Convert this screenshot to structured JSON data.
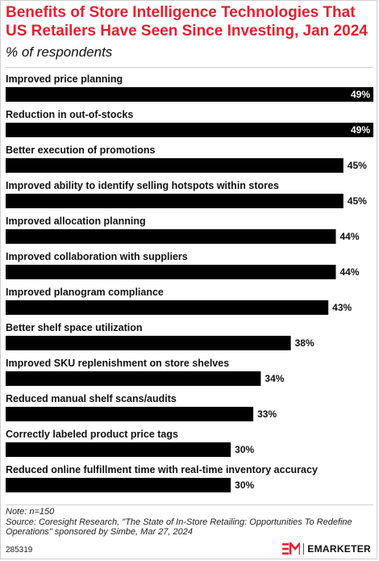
{
  "header": {
    "title": "Benefits of Store Intelligence Technologies That US Retailers Have Seen Since Investing, Jan 2024",
    "subtitle": "% of respondents"
  },
  "footer": {
    "note": "Note: n=150",
    "source": "Source: Coresight Research, \"The State of In-Store Retailing: Opportunities To Redefine Operations\" sponsored by Simbe, Mar 27, 2024",
    "chart_id": "285319",
    "brand": "EMARKETER"
  },
  "colors": {
    "title": "#e4202f",
    "bar": "#000000",
    "label": "#111111",
    "brand_logo": "#e4202f"
  },
  "icons": {
    "brand_logo": "em-logo-icon"
  },
  "chart_data": {
    "type": "bar",
    "orientation": "horizontal",
    "categories": [
      "Improved price planning",
      "Reduction in out-of-stocks",
      "Better execution of promotions",
      "Improved ability to identify selling hotspots within stores",
      "Improved allocation planning",
      "Improved collaboration with suppliers",
      "Improved planogram compliance",
      "Better shelf space utilization",
      "Improved SKU replenishment on store shelves",
      "Reduced manual shelf scans/audits",
      "Correctly labeled product price tags",
      "Reduced online fulfillment time with real-time inventory accuracy"
    ],
    "values": [
      49,
      49,
      45,
      45,
      44,
      44,
      43,
      38,
      34,
      33,
      30,
      30
    ],
    "value_suffix": "%",
    "xlim": [
      0,
      49
    ],
    "grid": false,
    "legend": "none"
  }
}
